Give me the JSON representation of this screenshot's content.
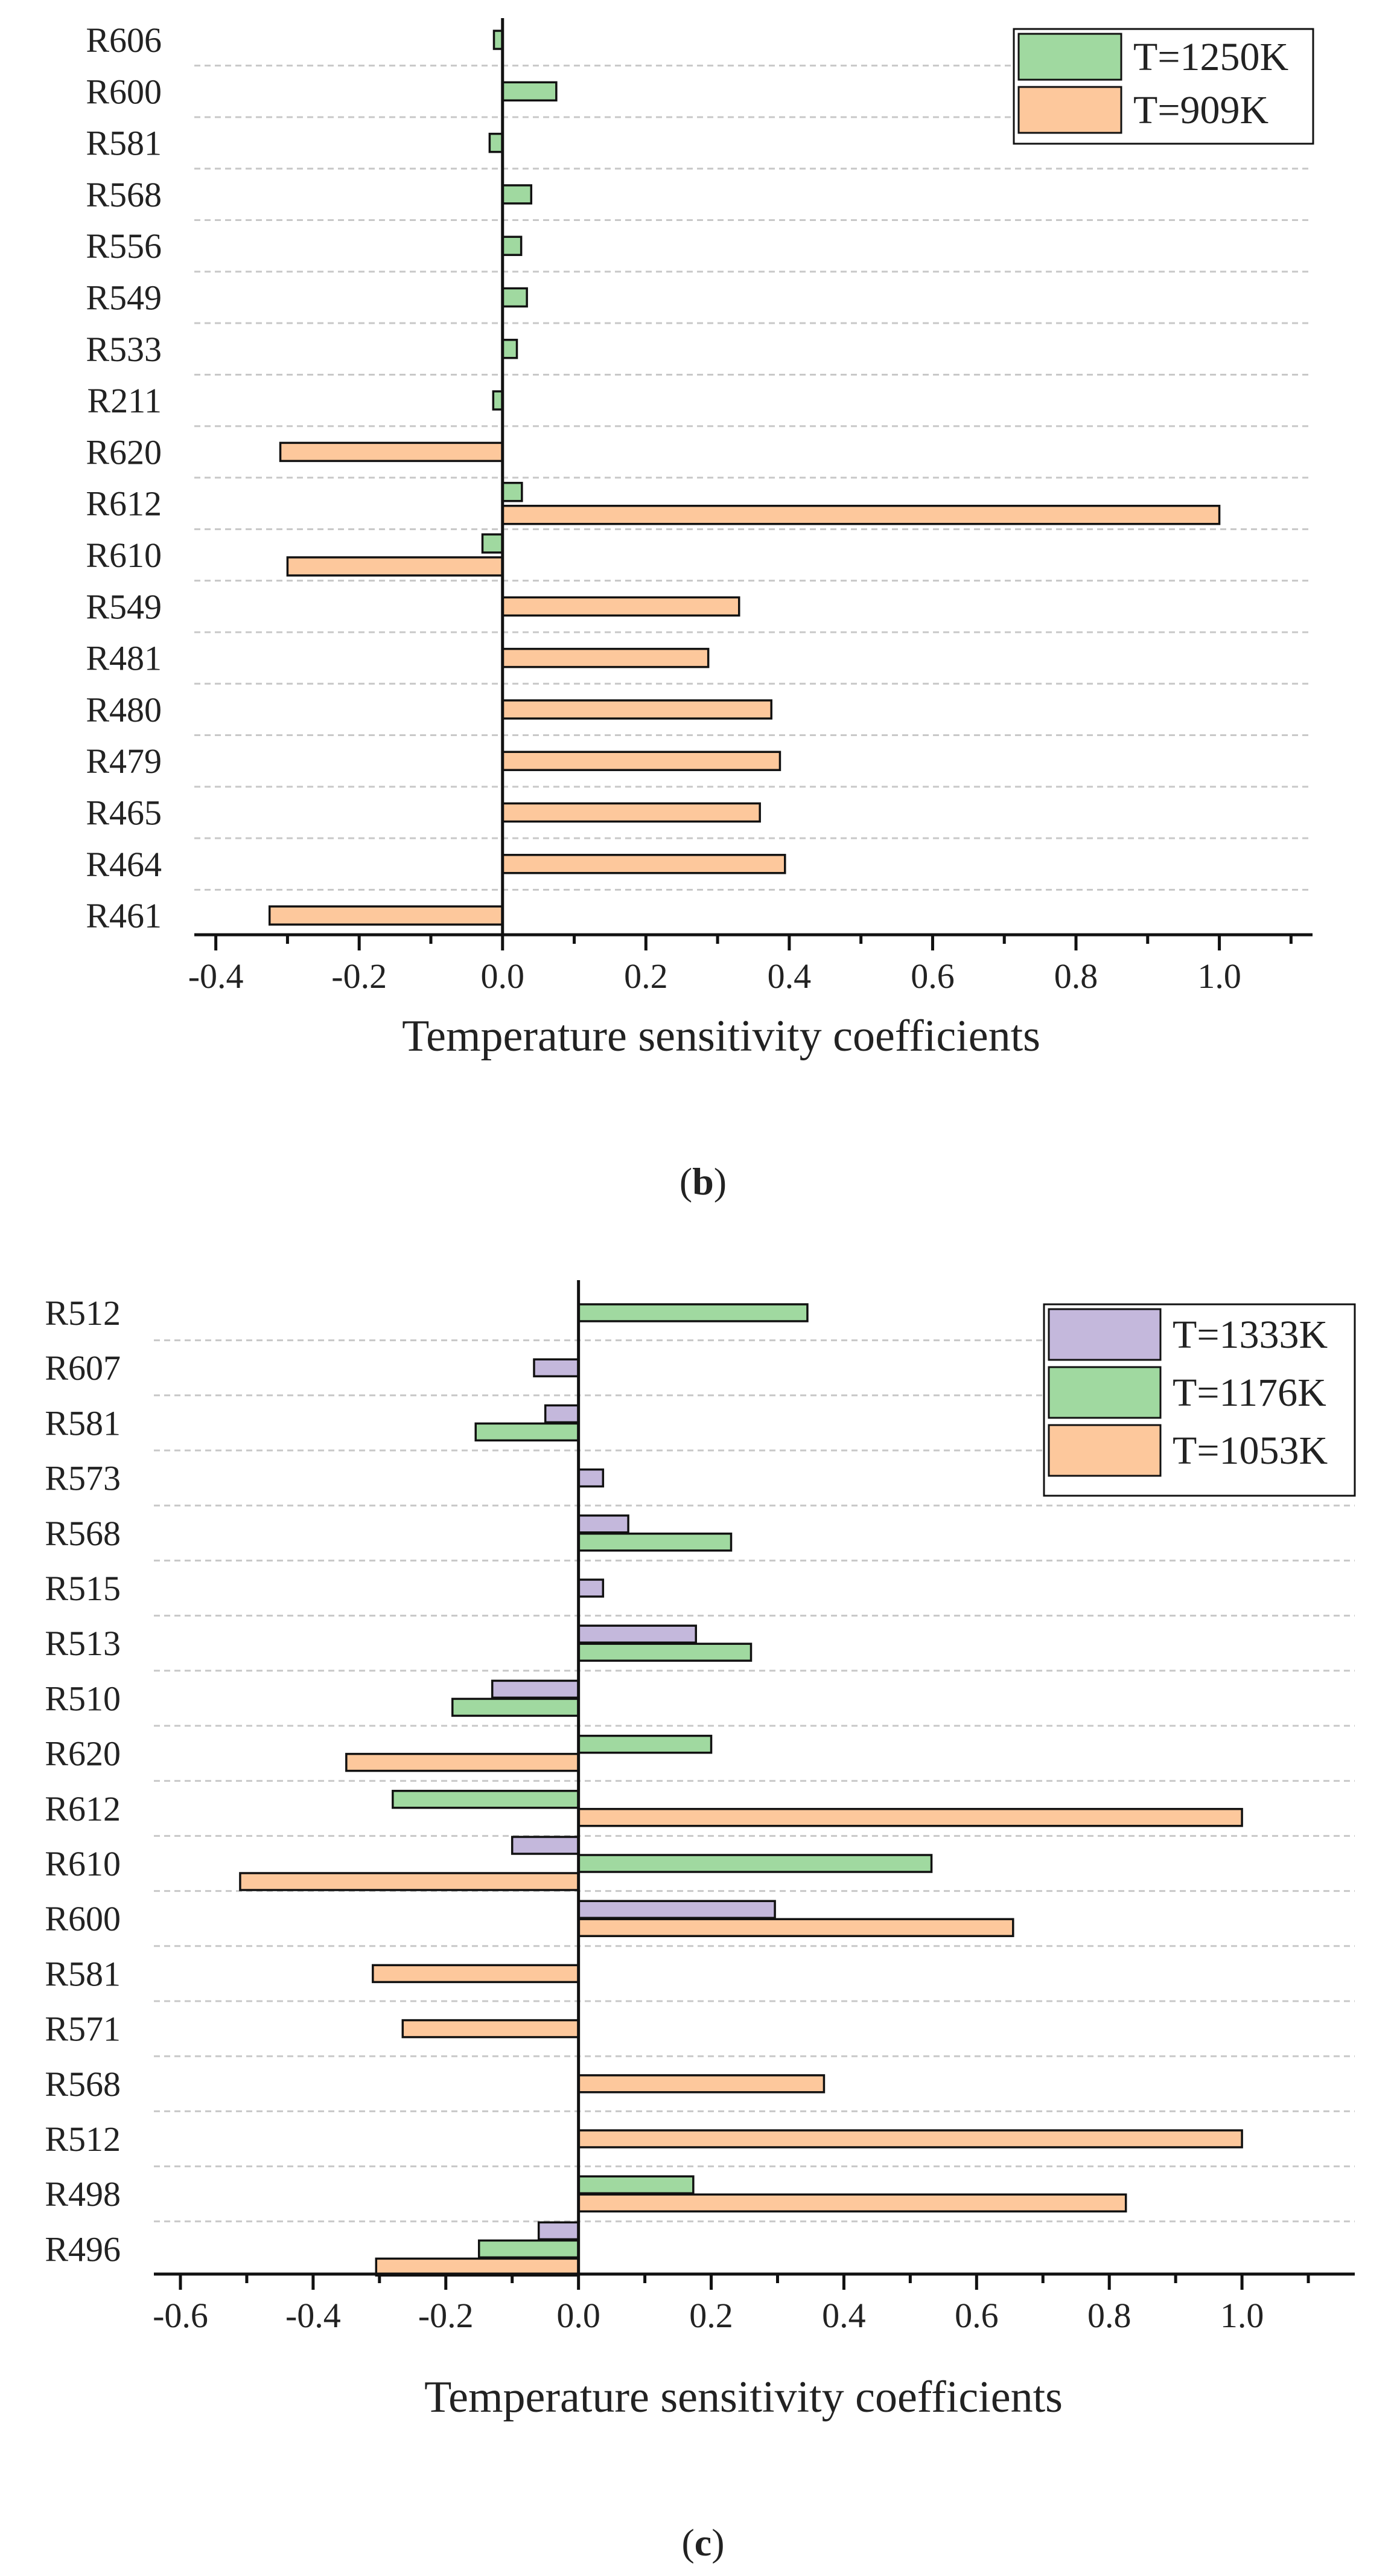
{
  "colors": {
    "green": "#a0d9a0",
    "orange": "#fdc89c",
    "purple": "#c4b8dc",
    "grid": "#c8c8c8",
    "axis": "#111111"
  },
  "chart_data": [
    {
      "type": "bar",
      "orientation": "horizontal",
      "panel_label": "b",
      "xlabel": "Temperature sensitivity coefficients",
      "ylabel": "",
      "xlim": [
        -0.43,
        1.13
      ],
      "x_ticks": [
        -0.4,
        -0.2,
        0.0,
        0.2,
        0.4,
        0.6,
        0.8,
        1.0
      ],
      "x_tick_labels": [
        "-0.4",
        "-0.2",
        "0.0",
        "0.2",
        "0.4",
        "0.6",
        "0.8",
        "1.0"
      ],
      "grid": true,
      "legend_position": "top-right",
      "categories": [
        "R606",
        "R600",
        "R581",
        "R568",
        "R556",
        "R549",
        "R533",
        "R211",
        "R620",
        "R612",
        "R610",
        "R549",
        "R481",
        "R480",
        "R479",
        "R465",
        "R464",
        "R461"
      ],
      "series": [
        {
          "name": "T=1250K",
          "color": "#a0d9a0",
          "values": [
            -0.012,
            0.075,
            -0.018,
            0.04,
            0.026,
            0.034,
            0.02,
            -0.013,
            null,
            0.027,
            -0.028,
            null,
            null,
            null,
            null,
            null,
            null,
            null
          ]
        },
        {
          "name": "T=909K",
          "color": "#fdc89c",
          "values": [
            null,
            null,
            null,
            null,
            null,
            null,
            null,
            null,
            -0.31,
            1.0,
            -0.3,
            0.33,
            0.287,
            0.375,
            0.387,
            0.359,
            0.394,
            -0.325
          ]
        }
      ]
    },
    {
      "type": "bar",
      "orientation": "horizontal",
      "panel_label": "c",
      "xlabel": "Temperature sensitivity coefficients",
      "ylabel": "",
      "xlim": [
        -0.64,
        1.17
      ],
      "x_ticks": [
        -0.6,
        -0.4,
        -0.2,
        0.0,
        0.2,
        0.4,
        0.6,
        0.8,
        1.0
      ],
      "x_tick_labels": [
        "-0.6",
        "-0.4",
        "-0.2",
        "0.0",
        "0.2",
        "0.4",
        "0.6",
        "0.8",
        "1.0"
      ],
      "grid": true,
      "legend_position": "top-right",
      "categories": [
        "R512",
        "R607",
        "R581",
        "R573",
        "R568",
        "R515",
        "R513",
        "R510",
        "R620",
        "R612",
        "R610",
        "R600",
        "R581",
        "R571",
        "R568",
        "R512",
        "R498",
        "R496"
      ],
      "series": [
        {
          "name": "T=1333K",
          "color": "#c4b8dc",
          "values": [
            null,
            -0.067,
            -0.05,
            0.037,
            0.075,
            0.037,
            0.177,
            -0.13,
            null,
            null,
            -0.1,
            0.296,
            null,
            null,
            null,
            null,
            null,
            -0.06
          ]
        },
        {
          "name": "T=1176K",
          "color": "#a0d9a0",
          "values": [
            0.345,
            null,
            -0.155,
            null,
            0.23,
            null,
            0.26,
            -0.19,
            0.2,
            -0.28,
            0.532,
            null,
            null,
            null,
            null,
            null,
            0.173,
            -0.15
          ]
        },
        {
          "name": "T=1053K",
          "color": "#fdc89c",
          "values": [
            null,
            null,
            null,
            null,
            null,
            null,
            null,
            null,
            -0.35,
            1.0,
            -0.51,
            0.655,
            -0.31,
            -0.265,
            0.37,
            1.0,
            0.825,
            -0.305
          ]
        }
      ]
    }
  ]
}
